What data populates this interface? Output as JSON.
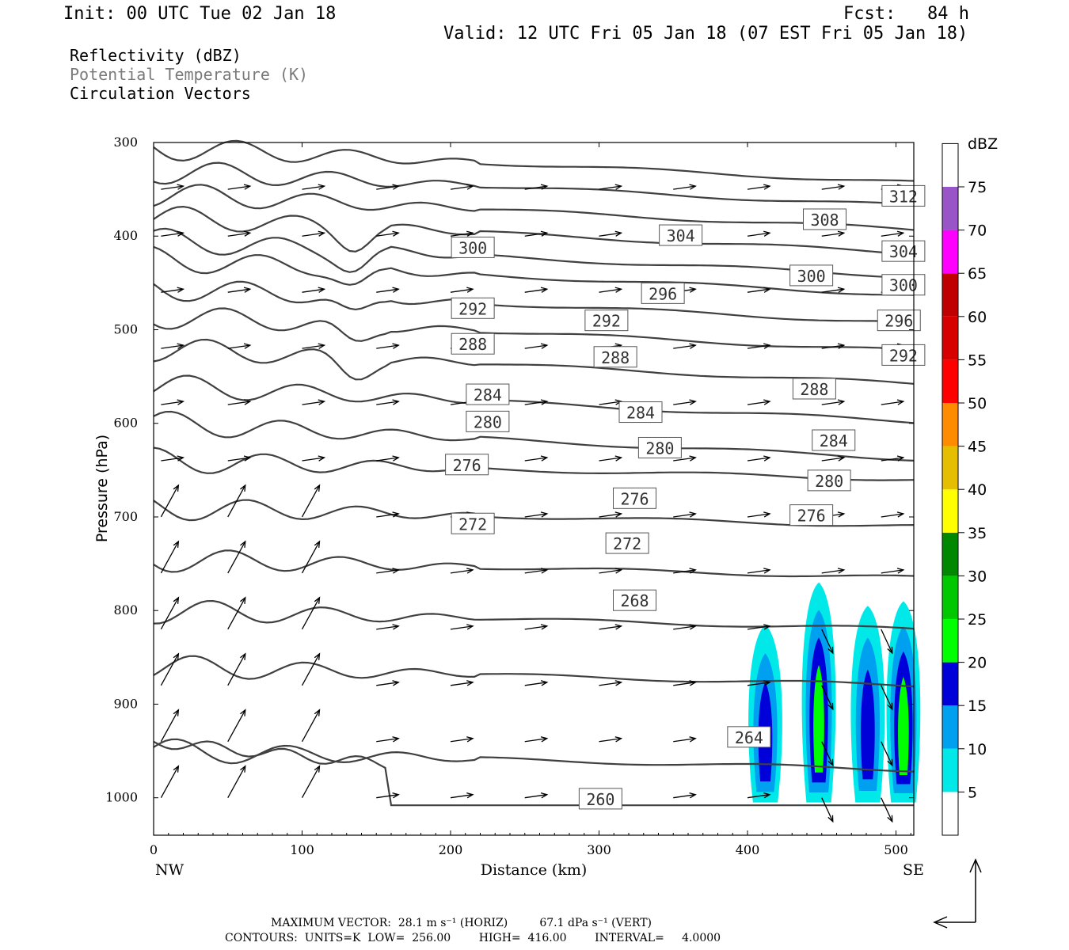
{
  "header": {
    "init": "Init: 00 UTC Tue 02 Jan 18",
    "fcst": "Fcst:   84 h",
    "valid": "Valid: 12 UTC Fri 05 Jan 18 (07 EST Fri 05 Jan 18)",
    "fields": [
      "Reflectivity (dBZ)",
      "Potential Temperature (K)",
      "Circulation Vectors"
    ]
  },
  "footer": {
    "max_vector": "MAXIMUM VECTOR:  28.1 m s⁻¹ (HORIZ)         67.1 dPa s⁻¹ (VERT)",
    "contours": "CONTOURS:  UNITS=K  LOW=  256.00        HIGH=  416.00        INTERVAL=     4.0000"
  },
  "colors": {
    "contour": "#404040",
    "scale": [
      "#00e8e8",
      "#00a0f0",
      "#0000d8",
      "#00ff00",
      "#00c800",
      "#008800",
      "#ffff00",
      "#e6be00",
      "#ff8c00",
      "#ff0000",
      "#d60000",
      "#c00000",
      "#ff00ff",
      "#9955c8"
    ]
  },
  "chart_data": {
    "type": "contour",
    "xlabel": "Distance (km)",
    "ylabel": "Pressure (hPa)",
    "xlim": [
      0,
      512
    ],
    "ylim": [
      1040,
      300
    ],
    "x_ticks": [
      "0",
      "100",
      "200",
      "300",
      "400",
      "500"
    ],
    "y_ticks": [
      "300",
      "400",
      "500",
      "600",
      "700",
      "800",
      "900",
      "1000"
    ],
    "left_end": "NW",
    "right_end": "SE",
    "colorbar": {
      "title": "dBZ",
      "levels": [
        5,
        10,
        15,
        20,
        25,
        30,
        35,
        40,
        45,
        50,
        55,
        60,
        65,
        70,
        75
      ]
    },
    "contour_labels": [
      {
        "value": "312",
        "x": 505,
        "p": 357
      },
      {
        "value": "308",
        "x": 452,
        "p": 382
      },
      {
        "value": "304",
        "x": 355,
        "p": 399
      },
      {
        "value": "304",
        "x": 505,
        "p": 416
      },
      {
        "value": "300",
        "x": 215,
        "p": 412
      },
      {
        "value": "300",
        "x": 443,
        "p": 442
      },
      {
        "value": "300",
        "x": 505,
        "p": 452
      },
      {
        "value": "296",
        "x": 343,
        "p": 461
      },
      {
        "value": "296",
        "x": 502,
        "p": 490
      },
      {
        "value": "292",
        "x": 215,
        "p": 477
      },
      {
        "value": "292",
        "x": 305,
        "p": 490
      },
      {
        "value": "292",
        "x": 505,
        "p": 527
      },
      {
        "value": "288",
        "x": 215,
        "p": 515
      },
      {
        "value": "288",
        "x": 311,
        "p": 529
      },
      {
        "value": "288",
        "x": 445,
        "p": 563
      },
      {
        "value": "284",
        "x": 225,
        "p": 569
      },
      {
        "value": "284",
        "x": 328,
        "p": 588
      },
      {
        "value": "284",
        "x": 458,
        "p": 618
      },
      {
        "value": "280",
        "x": 225,
        "p": 598
      },
      {
        "value": "280",
        "x": 341,
        "p": 626
      },
      {
        "value": "280",
        "x": 455,
        "p": 661
      },
      {
        "value": "276",
        "x": 211,
        "p": 644
      },
      {
        "value": "276",
        "x": 324,
        "p": 680
      },
      {
        "value": "276",
        "x": 443,
        "p": 698
      },
      {
        "value": "272",
        "x": 215,
        "p": 707
      },
      {
        "value": "272",
        "x": 319,
        "p": 728
      },
      {
        "value": "268",
        "x": 324,
        "p": 789
      },
      {
        "value": "264",
        "x": 401,
        "p": 935
      },
      {
        "value": "260",
        "x": 301,
        "p": 1001
      }
    ],
    "reflectivity_cells": [
      {
        "x": 412,
        "p_bottom": 1005,
        "p_top": 815,
        "max_dbz": 15
      },
      {
        "x": 448,
        "p_bottom": 1005,
        "p_top": 770,
        "max_dbz": 20
      },
      {
        "x": 481,
        "p_bottom": 1005,
        "p_top": 795,
        "max_dbz": 15
      },
      {
        "x": 505,
        "p_bottom": 1005,
        "p_top": 790,
        "max_dbz": 20
      }
    ]
  }
}
